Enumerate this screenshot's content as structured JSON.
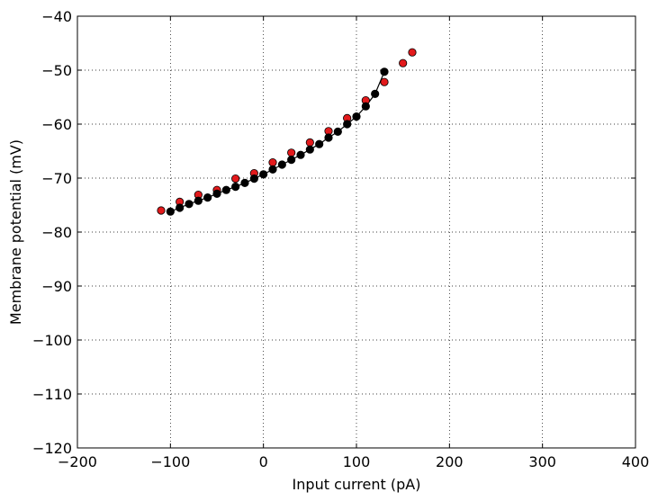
{
  "chart_data": {
    "type": "scatter",
    "xlabel": "Input current (pA)",
    "ylabel": "Membrane potential (mV)",
    "xlim": [
      -200,
      400
    ],
    "ylim": [
      -120,
      -40
    ],
    "xticks": [
      -200,
      -100,
      0,
      100,
      200,
      300,
      400
    ],
    "yticks": [
      -120,
      -110,
      -100,
      -90,
      -80,
      -70,
      -60,
      -50,
      -40
    ],
    "xtick_labels": [
      "−200",
      "−100",
      "0",
      "100",
      "200",
      "300",
      "400"
    ],
    "ytick_labels": [
      "−120",
      "−110",
      "−100",
      "−90",
      "−80",
      "−70",
      "−60",
      "−50",
      "−40"
    ],
    "grid": true,
    "series": [
      {
        "style": "line-markers",
        "color": "#000000",
        "x": [
          -100,
          -90,
          -80,
          -70,
          -60,
          -50,
          -40,
          -30,
          -20,
          -10,
          0,
          10,
          20,
          30,
          40,
          50,
          60,
          70,
          80,
          90,
          100,
          110,
          120,
          130
        ],
        "y": [
          -76.2,
          -75.5,
          -74.8,
          -74.2,
          -73.6,
          -72.9,
          -72.2,
          -71.6,
          -70.9,
          -70.1,
          -69.3,
          -68.4,
          -67.5,
          -66.6,
          -65.7,
          -64.7,
          -63.7,
          -62.5,
          -61.4,
          -60.0,
          -58.6,
          -56.7,
          -54.4,
          -50.3
        ]
      },
      {
        "style": "markers",
        "color": "#e31a1c",
        "x": [
          -110,
          -90,
          -70,
          -50,
          -30,
          -10,
          10,
          30,
          50,
          70,
          90,
          110,
          130,
          150,
          160
        ],
        "y": [
          -76.0,
          -74.4,
          -73.1,
          -72.2,
          -70.1,
          -69.1,
          -67.1,
          -65.3,
          -63.4,
          -61.3,
          -58.9,
          -55.6,
          -52.2,
          -48.7,
          -46.7
        ]
      }
    ]
  }
}
